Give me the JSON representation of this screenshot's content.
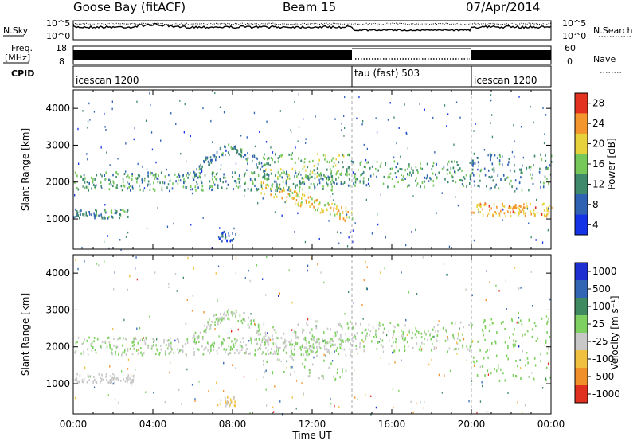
{
  "header": {
    "station": "Goose Bay (fitACF)",
    "beam": "Beam 15",
    "date": "07/Apr/2014"
  },
  "panels": {
    "nsky_label": "N.Sky",
    "nsky_ticks": [
      "10^5",
      "10^0"
    ],
    "nsearch_label": "N.Search",
    "nsearch_ticks": [
      "10^5",
      "10^0"
    ],
    "freq_label_1": "Freq.",
    "freq_label_2": "[MHz]",
    "freq_ticks": [
      "18",
      "8"
    ],
    "nave_label": "Nave",
    "nave_ticks": [
      "60",
      "0"
    ],
    "cpid_label": "CPID",
    "cpid_segments": [
      {
        "label": "icescan 1200",
        "start": 0,
        "end": 14
      },
      {
        "label": "tau (fast) 503",
        "start": 14,
        "end": 20
      },
      {
        "label": "icescan 1200",
        "start": 20,
        "end": 24
      }
    ]
  },
  "chart_data": [
    {
      "type": "heatmap",
      "name": "power",
      "xlabel": "",
      "ylabel": "Slant Range [km]",
      "xlim": [
        0,
        24
      ],
      "ylim": [
        180,
        4500
      ],
      "yticks": [
        "1000",
        "2000",
        "3000",
        "4000"
      ],
      "colorbar": {
        "label": "Power [dB]",
        "ticks": [
          "4",
          "8",
          "12",
          "16",
          "20",
          "24",
          "28"
        ],
        "range": [
          0,
          30
        ],
        "colors": [
          "#1432e6",
          "#2f62b2",
          "#3f8a6d",
          "#76c85a",
          "#e8d23c",
          "#f2962d",
          "#e33220"
        ]
      },
      "features": [
        {
          "desc": "echo band",
          "t_start": 0.0,
          "t_end": 2.8,
          "range_km": [
            1050,
            1300
          ],
          "power_db": 10
        },
        {
          "desc": "echo band",
          "t_start": 0.0,
          "t_end": 14.0,
          "range_km": [
            1800,
            2300
          ],
          "power_db": 11
        },
        {
          "desc": "arc",
          "t_start": 6.0,
          "t_end": 9.8,
          "range_km": [
            2200,
            2900
          ],
          "power_db": 9
        },
        {
          "desc": "descending band",
          "t_start": 9.4,
          "t_end": 14.0,
          "range_km": [
            1100,
            1900
          ],
          "power_db": 20
        },
        {
          "desc": "upper band",
          "t_start": 9.5,
          "t_end": 14.0,
          "range_km": [
            2100,
            2800
          ],
          "power_db": 14
        },
        {
          "desc": "patch",
          "t_start": 7.2,
          "t_end": 8.2,
          "range_km": [
            420,
            680
          ],
          "power_db": 6
        },
        {
          "desc": "band",
          "t_start": 14.0,
          "t_end": 20.0,
          "range_km": [
            1900,
            2600
          ],
          "power_db": 12
        },
        {
          "desc": "band",
          "t_start": 20.0,
          "t_end": 24.0,
          "range_km": [
            1100,
            1450
          ],
          "power_db": 22
        },
        {
          "desc": "upper band",
          "t_start": 20.0,
          "t_end": 24.0,
          "range_km": [
            1800,
            2800
          ],
          "power_db": 10
        }
      ]
    },
    {
      "type": "heatmap",
      "name": "velocity",
      "xlabel": "Time UT",
      "ylabel": "Slant Range [km]",
      "xlim": [
        0,
        24
      ],
      "ylim": [
        180,
        4500
      ],
      "xticks": [
        "00:00",
        "04:00",
        "08:00",
        "12:00",
        "16:00",
        "20:00",
        "00:00"
      ],
      "yticks": [
        "1000",
        "2000",
        "3000",
        "4000"
      ],
      "colorbar": {
        "label": "Velocity [m s⁻¹]",
        "ticks": [
          "1000",
          "500",
          "100",
          "25",
          "-25",
          "-100",
          "-500",
          "-1000"
        ],
        "range": [
          -1200,
          1200
        ],
        "colors": [
          "#1d2fd0",
          "#3365b5",
          "#3f8a60",
          "#7ed060",
          "#c8c8c8",
          "#f0c040",
          "#f0902a",
          "#e03020"
        ]
      },
      "features": [
        {
          "desc": "ground scatter band",
          "t_start": 0.0,
          "t_end": 14.0,
          "range_km": [
            1800,
            2300
          ],
          "velocity": 0
        },
        {
          "desc": "ground scatter arc",
          "t_start": 6.0,
          "t_end": 9.8,
          "range_km": [
            2200,
            2900
          ],
          "velocity": 0
        },
        {
          "desc": "ground scatter",
          "t_start": 9.5,
          "t_end": 14.0,
          "range_km": [
            1100,
            2800
          ],
          "velocity": 0
        },
        {
          "desc": "ionospheric patch",
          "t_start": 0.0,
          "t_end": 3.0,
          "range_km": [
            1050,
            1300
          ],
          "velocity": -150
        },
        {
          "desc": "ionospheric patch",
          "t_start": 7.2,
          "t_end": 8.2,
          "range_km": [
            420,
            680
          ],
          "velocity": -300
        },
        {
          "desc": "ground scatter",
          "t_start": 14.0,
          "t_end": 20.0,
          "range_km": [
            1900,
            2700
          ],
          "velocity": 0
        },
        {
          "desc": "mixed",
          "t_start": 20.0,
          "t_end": 24.0,
          "range_km": [
            1100,
            2800
          ],
          "velocity": 150
        }
      ]
    }
  ]
}
